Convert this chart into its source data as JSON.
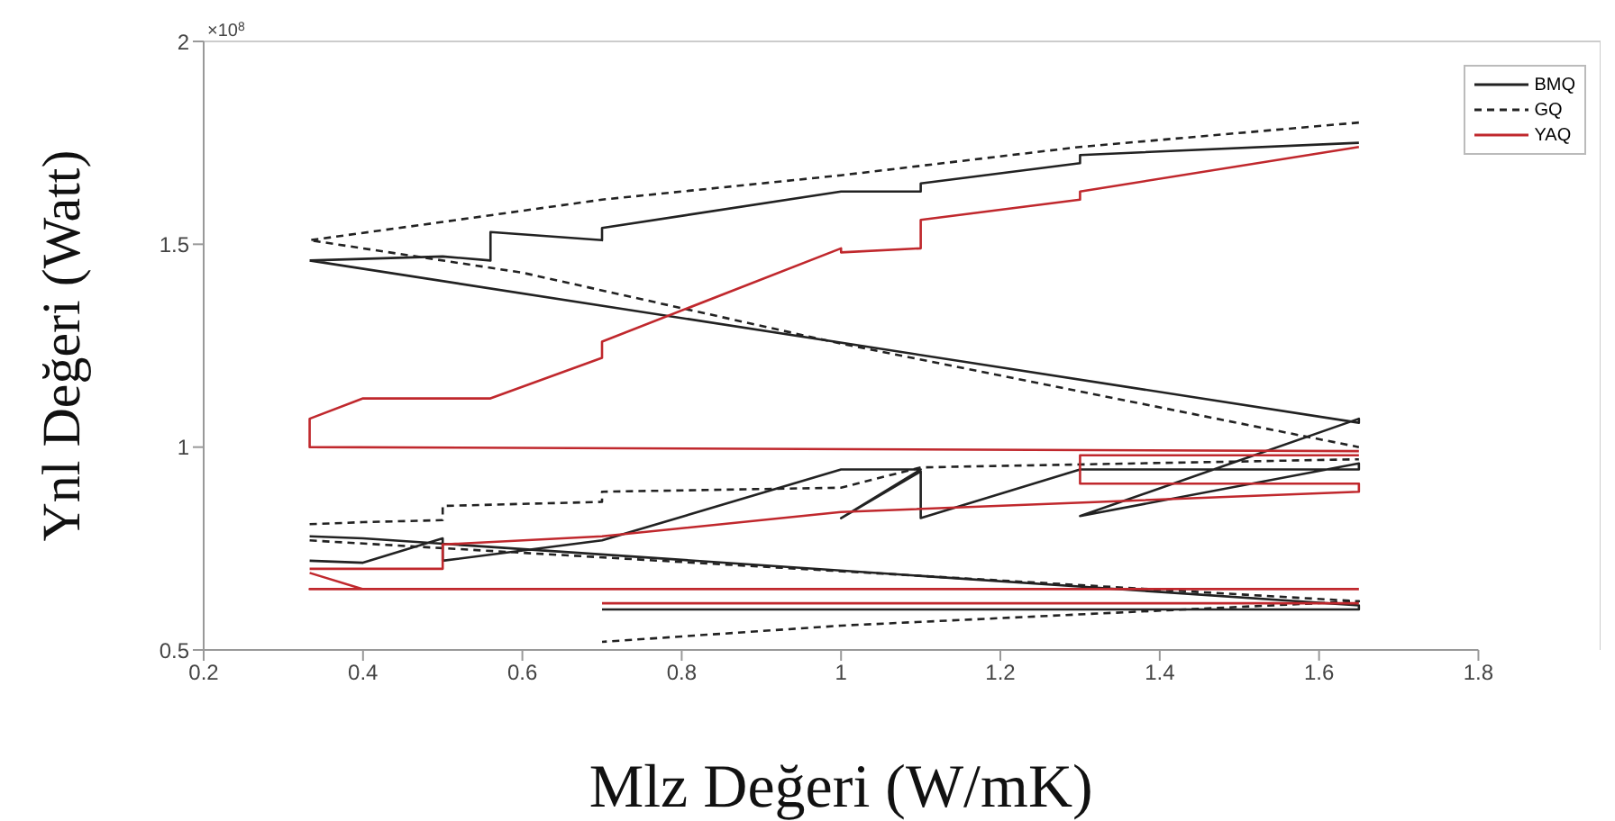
{
  "chart_data": {
    "type": "line",
    "xlabel": "Mlz Değeri (W/mK)",
    "ylabel": "Ynl Değeri (Watt)",
    "annotations": [
      "×10$^{8}$"
    ],
    "xlim": [
      0.2,
      1.8
    ],
    "xticks": [
      0.2,
      0.4,
      0.6,
      0.8,
      1,
      1.2,
      1.4,
      1.6,
      1.8
    ],
    "ylim": [
      0.5,
      2
    ],
    "yticks": [
      0.5,
      1,
      1.5,
      2
    ],
    "legend": "top right",
    "marker": "none",
    "series": [
      {
        "name": "BMQ",
        "color": "#222222",
        "line_style": "solid",
        "x": [
          0.333,
          0.5,
          0.56,
          0.56,
          0.7,
          0.7,
          1.0,
          1.1,
          1.1,
          1.3,
          1.3,
          1.65,
          null,
          0.333,
          0.4,
          0.5,
          0.5,
          0.7,
          1.0,
          1.1,
          1.0,
          1.1,
          1.1,
          1.3,
          1.65,
          1.65,
          1.3,
          1.65,
          1.65,
          0.333,
          null,
          0.333,
          0.4,
          1.65,
          1.65,
          0.7
        ],
        "values": [
          1.46,
          1.47,
          1.46,
          1.53,
          1.51,
          1.54,
          1.63,
          1.63,
          1.65,
          1.7,
          1.72,
          1.75,
          null,
          0.72,
          0.715,
          0.775,
          0.72,
          0.77,
          0.945,
          0.945,
          0.825,
          0.94,
          0.825,
          0.945,
          0.945,
          0.96,
          0.83,
          1.07,
          1.06,
          1.46,
          null,
          0.78,
          0.775,
          0.61,
          0.6,
          0.6
        ]
      },
      {
        "name": "GQ",
        "color": "#222222",
        "line_style": "dashed",
        "x": [
          1.65,
          1.3,
          1.0,
          0.7,
          0.5,
          0.333,
          0.6,
          1.0,
          1.65,
          null,
          0.333,
          0.4,
          0.5,
          0.5,
          0.7,
          0.7,
          1.0,
          1.1,
          1.65,
          null,
          0.333,
          1.65,
          1.0,
          0.7
        ],
        "values": [
          1.8,
          1.74,
          1.67,
          1.61,
          1.555,
          1.51,
          1.43,
          1.255,
          1.0,
          null,
          0.81,
          0.815,
          0.82,
          0.855,
          0.865,
          0.89,
          0.9,
          0.95,
          0.97,
          null,
          0.77,
          0.62,
          0.56,
          0.52
        ]
      },
      {
        "name": "YAQ",
        "color": "#c0282d",
        "line_style": "solid",
        "x": [
          1.65,
          0.333,
          0.333,
          0.4,
          0.56,
          0.7,
          0.7,
          1.0,
          1.0,
          1.1,
          1.1,
          1.3,
          1.3,
          1.65,
          null,
          0.333,
          0.5,
          0.5,
          0.7,
          1.0,
          1.65,
          1.65,
          1.3,
          1.3,
          1.65,
          null,
          0.333,
          0.4,
          0.333,
          1.65,
          null,
          0.7,
          1.65
        ],
        "values": [
          0.99,
          1.0,
          1.07,
          1.12,
          1.12,
          1.22,
          1.26,
          1.49,
          1.48,
          1.49,
          1.56,
          1.61,
          1.63,
          1.74,
          null,
          0.7,
          0.7,
          0.76,
          0.78,
          0.84,
          0.89,
          0.91,
          0.91,
          0.98,
          0.98,
          null,
          0.69,
          0.65,
          0.65,
          0.65,
          null,
          0.615,
          0.615
        ]
      }
    ]
  }
}
